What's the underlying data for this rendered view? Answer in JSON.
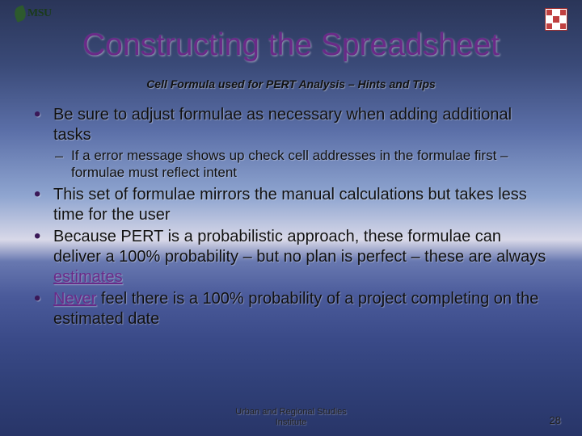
{
  "logo": {
    "text": "MSU"
  },
  "title": "Constructing the Spreadsheet",
  "subtitle": "Cell Formula used for PERT Analysis – Hints and Tips",
  "bullets": {
    "b1": "Be sure to adjust formulae as necessary when adding additional tasks",
    "b1sub": "If a error message shows up check cell addresses in the formulae first – formulae must reflect intent",
    "b2": "This set of formulae mirrors the manual calculations but takes less time for the user",
    "b3a": "Because PERT is a probabilistic approach, these formulae can deliver a 100% probability – but no plan is perfect – these are always ",
    "b3accent": "estimates",
    "b4accent": "Never",
    "b4b": " feel there is a 100% probability of a project completing on the estimated date"
  },
  "footer": {
    "line1": "Urban and Regional Studies",
    "line2": "Institute"
  },
  "page": "28",
  "colors": {
    "title": "#6a2a88",
    "accent": "#6a2a88",
    "text": "#111111"
  }
}
